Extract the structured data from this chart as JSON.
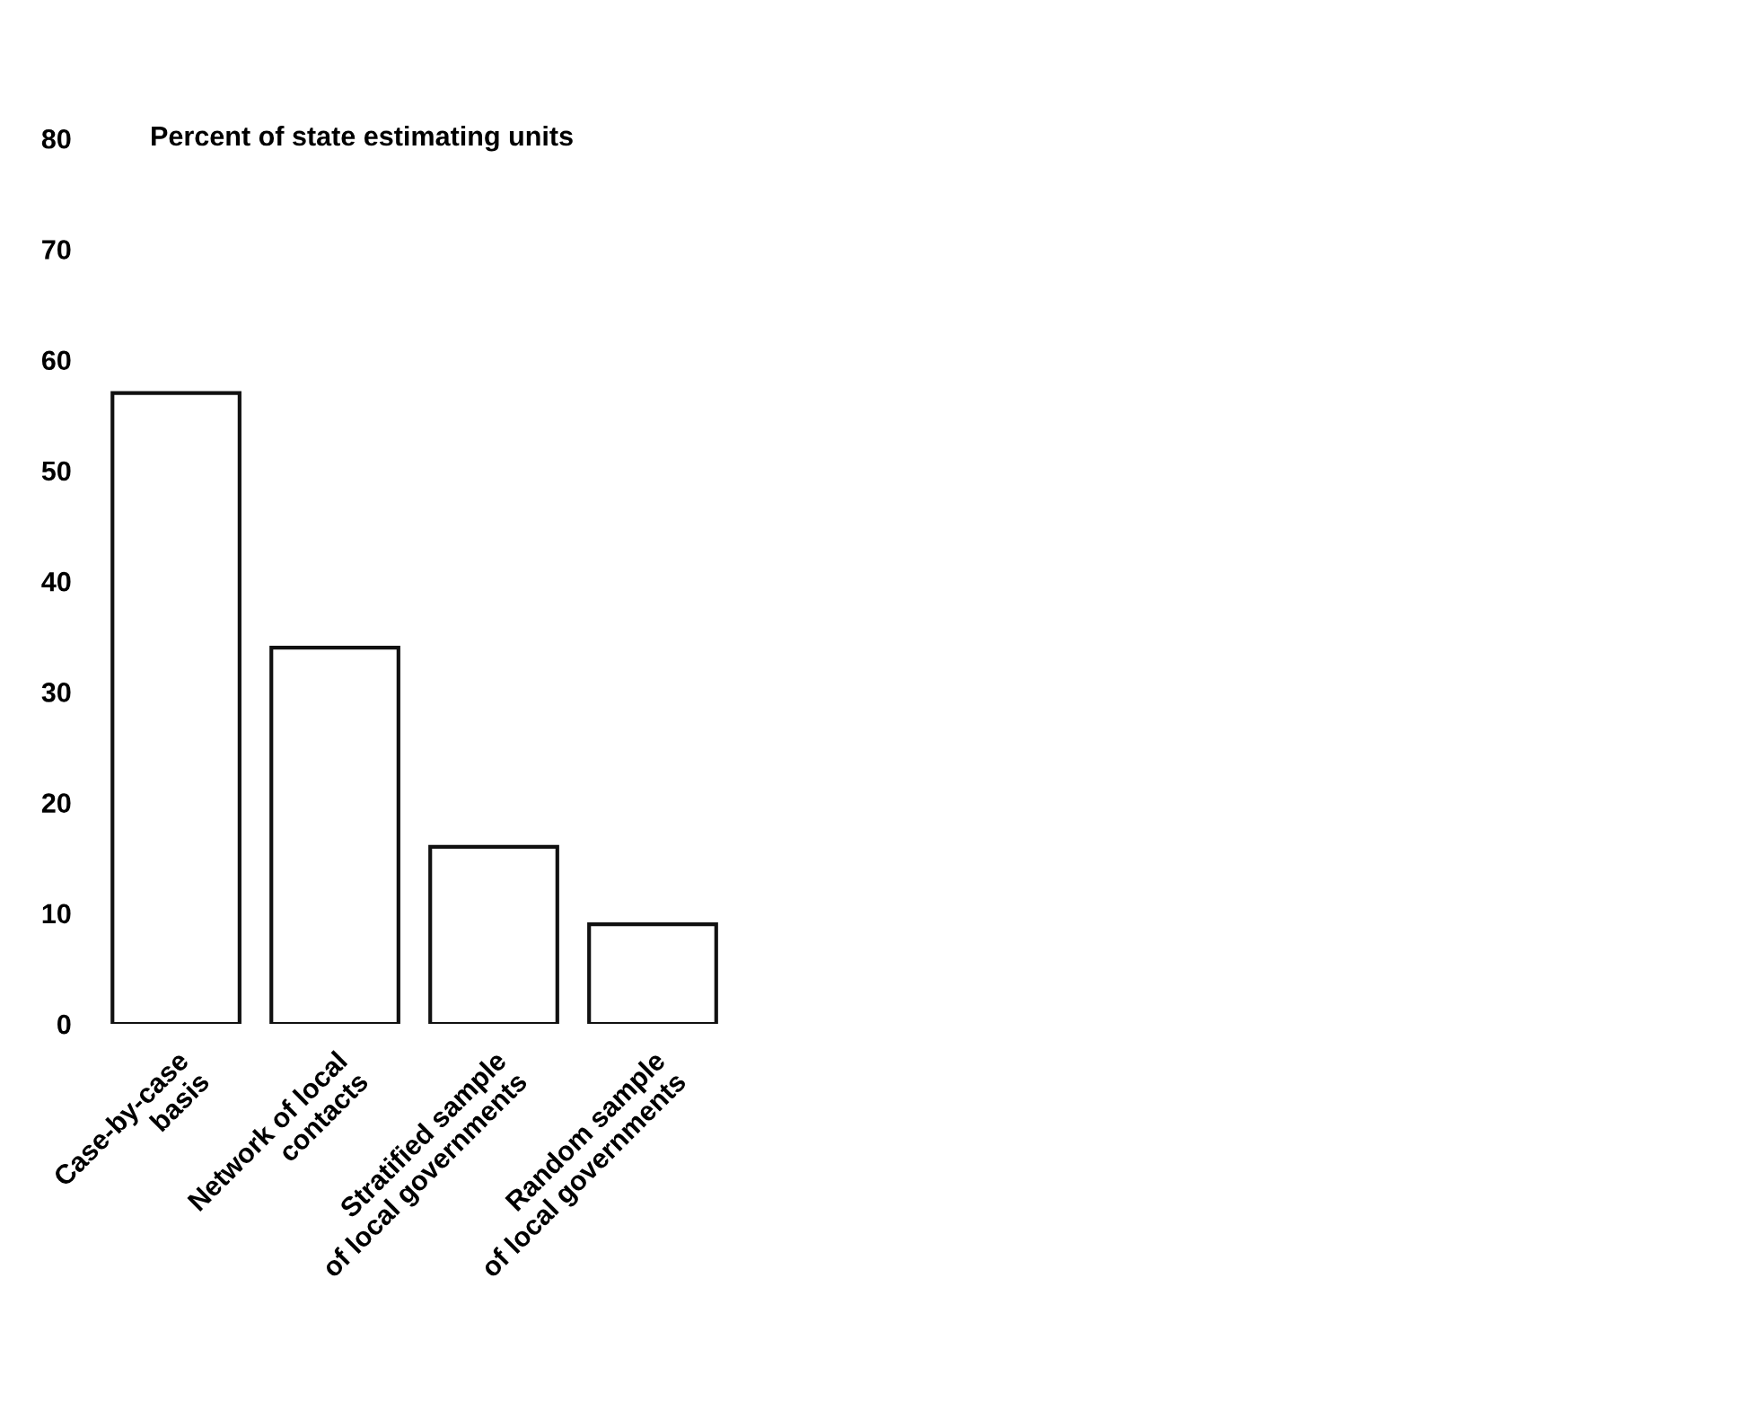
{
  "chart_data": {
    "type": "bar",
    "ylabel": "Percent of state estimating units",
    "categories": [
      "Case-by-case\nbasis",
      "Network of local\ncontacts",
      "Stratified sample\nof local governments",
      "Random sample\nof local governments"
    ],
    "values": [
      57,
      34,
      16,
      9
    ],
    "color": "#ffffff",
    "ylim": [
      0,
      80
    ],
    "yticks": [
      0,
      10,
      20,
      30,
      40,
      50,
      60,
      70,
      80
    ],
    "grid": false
  }
}
